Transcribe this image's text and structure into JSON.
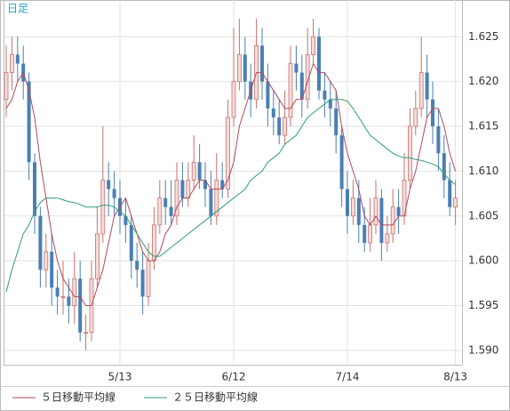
{
  "chart_data": {
    "type": "candlestick",
    "title": "日足",
    "categories": [
      null,
      null,
      null,
      null,
      null,
      null,
      null,
      null,
      null,
      null,
      null,
      null,
      null,
      null,
      null,
      null,
      null,
      null,
      null,
      null,
      "5/13",
      null,
      null,
      null,
      null,
      null,
      null,
      null,
      null,
      null,
      null,
      null,
      null,
      null,
      null,
      null,
      null,
      null,
      null,
      null,
      "6/12",
      null,
      null,
      null,
      null,
      null,
      null,
      null,
      null,
      null,
      null,
      null,
      null,
      null,
      null,
      null,
      null,
      null,
      null,
      null,
      "7/14",
      null,
      null,
      null,
      null,
      null,
      null,
      null,
      null,
      null,
      null,
      null,
      null,
      null,
      null,
      null,
      null,
      null,
      null,
      "8/13"
    ],
    "open": [
      1.618,
      1.621,
      1.623,
      1.622,
      1.62,
      1.611,
      1.605,
      1.599,
      1.601,
      1.597,
      1.596,
      1.596,
      1.595,
      1.598,
      1.592,
      1.592,
      1.598,
      1.603,
      1.609,
      1.608,
      1.607,
      1.605,
      1.604,
      1.6,
      1.599,
      1.596,
      1.6,
      1.604,
      1.607,
      1.606,
      1.605,
      1.609,
      1.607,
      1.609,
      1.611,
      1.609,
      1.608,
      1.605,
      1.609,
      1.608,
      1.616,
      1.62,
      1.623,
      1.62,
      1.618,
      1.624,
      1.62,
      1.617,
      1.616,
      1.614,
      1.616,
      1.622,
      1.621,
      1.618,
      1.623,
      1.625,
      1.619,
      1.618,
      1.617,
      1.614,
      1.608,
      1.605,
      1.607,
      1.604,
      1.602,
      1.604,
      1.607,
      1.602,
      1.603,
      1.606,
      1.605,
      1.609,
      1.615,
      1.617,
      1.621,
      1.618,
      1.615,
      1.612,
      1.609,
      1.606
    ],
    "high": [
      1.624,
      1.625,
      1.625,
      1.624,
      1.621,
      1.612,
      1.606,
      1.603,
      1.603,
      1.599,
      1.6,
      1.598,
      1.601,
      1.6,
      1.594,
      1.6,
      1.606,
      1.615,
      1.611,
      1.61,
      1.609,
      1.607,
      1.605,
      1.602,
      1.601,
      1.602,
      1.606,
      1.609,
      1.609,
      1.609,
      1.611,
      1.611,
      1.611,
      1.614,
      1.613,
      1.611,
      1.61,
      1.612,
      1.611,
      1.618,
      1.626,
      1.627,
      1.625,
      1.622,
      1.627,
      1.626,
      1.622,
      1.619,
      1.618,
      1.619,
      1.624,
      1.624,
      1.623,
      1.626,
      1.627,
      1.626,
      1.621,
      1.62,
      1.619,
      1.615,
      1.61,
      1.609,
      1.609,
      1.606,
      1.607,
      1.609,
      1.608,
      1.605,
      1.608,
      1.608,
      1.612,
      1.617,
      1.619,
      1.625,
      1.623,
      1.62,
      1.617,
      1.614,
      1.611,
      1.609
    ],
    "low": [
      1.616,
      1.619,
      1.62,
      1.618,
      1.609,
      1.603,
      1.597,
      1.597,
      1.595,
      1.594,
      1.594,
      1.593,
      1.593,
      1.591,
      1.59,
      1.591,
      1.597,
      1.602,
      1.605,
      1.605,
      1.603,
      1.602,
      1.598,
      1.597,
      1.594,
      1.595,
      1.599,
      1.603,
      1.604,
      1.604,
      1.604,
      1.606,
      1.606,
      1.608,
      1.608,
      1.606,
      1.604,
      1.604,
      1.607,
      1.607,
      1.615,
      1.619,
      1.618,
      1.616,
      1.617,
      1.618,
      1.615,
      1.614,
      1.613,
      1.613,
      1.615,
      1.619,
      1.616,
      1.617,
      1.622,
      1.618,
      1.616,
      1.615,
      1.612,
      1.606,
      1.603,
      1.604,
      1.602,
      1.601,
      1.601,
      1.603,
      1.6,
      1.601,
      1.602,
      1.603,
      1.604,
      1.608,
      1.614,
      1.616,
      1.616,
      1.613,
      1.61,
      1.607,
      1.605,
      1.604
    ],
    "close": [
      1.621,
      1.623,
      1.622,
      1.62,
      1.611,
      1.605,
      1.599,
      1.601,
      1.597,
      1.596,
      1.596,
      1.595,
      1.598,
      1.592,
      1.592,
      1.598,
      1.603,
      1.609,
      1.608,
      1.607,
      1.605,
      1.604,
      1.6,
      1.599,
      1.596,
      1.6,
      1.604,
      1.607,
      1.606,
      1.605,
      1.609,
      1.607,
      1.609,
      1.611,
      1.609,
      1.608,
      1.605,
      1.609,
      1.608,
      1.616,
      1.62,
      1.623,
      1.62,
      1.618,
      1.624,
      1.62,
      1.617,
      1.616,
      1.614,
      1.616,
      1.622,
      1.621,
      1.618,
      1.623,
      1.625,
      1.619,
      1.618,
      1.617,
      1.614,
      1.608,
      1.605,
      1.607,
      1.604,
      1.602,
      1.604,
      1.607,
      1.602,
      1.603,
      1.606,
      1.605,
      1.609,
      1.615,
      1.617,
      1.621,
      1.618,
      1.615,
      1.612,
      1.609,
      1.606,
      1.607
    ],
    "up_color": "#c8706a",
    "down_color": "#4a7fb5",
    "series": [
      {
        "name": "５日移動平均線",
        "color": "#b04a5a",
        "values": [
          1.617,
          1.618,
          1.62,
          1.621,
          1.619,
          1.616,
          1.611,
          1.607,
          1.603,
          1.6,
          1.598,
          1.597,
          1.596,
          1.596,
          1.595,
          1.595,
          1.597,
          1.599,
          1.602,
          1.605,
          1.606,
          1.607,
          1.605,
          1.603,
          1.601,
          1.6,
          1.6,
          1.601,
          1.603,
          1.604,
          1.606,
          1.607,
          1.607,
          1.608,
          1.609,
          1.609,
          1.608,
          1.608,
          1.608,
          1.609,
          1.611,
          1.615,
          1.617,
          1.619,
          1.621,
          1.621,
          1.62,
          1.619,
          1.618,
          1.617,
          1.617,
          1.618,
          1.618,
          1.62,
          1.622,
          1.621,
          1.621,
          1.62,
          1.619,
          1.615,
          1.612,
          1.61,
          1.608,
          1.605,
          1.604,
          1.605,
          1.604,
          1.604,
          1.604,
          1.605,
          1.605,
          1.608,
          1.61,
          1.613,
          1.616,
          1.617,
          1.617,
          1.615,
          1.612,
          1.61
        ]
      },
      {
        "name": "２５日移動平均線",
        "color": "#2e9e6a",
        "values": [
          1.5965,
          1.599,
          1.601,
          1.603,
          1.604,
          1.6055,
          1.6065,
          1.607,
          1.607,
          1.607,
          1.6068,
          1.6066,
          1.6065,
          1.6063,
          1.606,
          1.606,
          1.606,
          1.6062,
          1.6062,
          1.606,
          1.6055,
          1.605,
          1.604,
          1.603,
          1.602,
          1.601,
          1.6005,
          1.6005,
          1.601,
          1.6015,
          1.602,
          1.6025,
          1.603,
          1.6035,
          1.604,
          1.6045,
          1.605,
          1.6055,
          1.606,
          1.6065,
          1.607,
          1.6075,
          1.608,
          1.609,
          1.6095,
          1.61,
          1.611,
          1.6115,
          1.612,
          1.613,
          1.6135,
          1.614,
          1.615,
          1.616,
          1.6165,
          1.617,
          1.6175,
          1.618,
          1.618,
          1.618,
          1.6178,
          1.617,
          1.616,
          1.615,
          1.614,
          1.6135,
          1.613,
          1.6125,
          1.612,
          1.6117,
          1.6115,
          1.6115,
          1.6113,
          1.6112,
          1.611,
          1.6108,
          1.6105,
          1.6097,
          1.609,
          1.6085
        ]
      }
    ],
    "ylim": [
      1.5884,
      1.6291
    ],
    "yticks": [
      {
        "value": 1.59,
        "label": "1.590"
      },
      1.595,
      {
        "value": 1.6,
        "label": "1.600"
      },
      1.605,
      {
        "value": 1.61,
        "label": "1.610"
      },
      1.615,
      {
        "value": 1.62,
        "label": "1.620"
      },
      1.625
    ],
    "grid": true
  }
}
